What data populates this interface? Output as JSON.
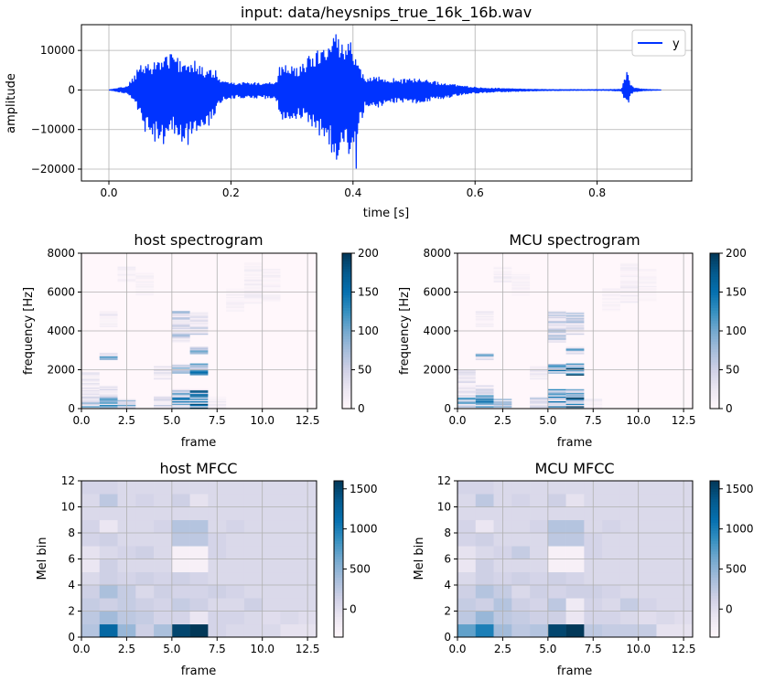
{
  "chart_data": [
    {
      "type": "line",
      "title": "input: data/heysnips_true_16k_16b.wav",
      "xlabel": "time [s]",
      "ylabel": "amplitude",
      "xlim": [
        -0.045,
        0.955
      ],
      "ylim": [
        -23000,
        16500
      ],
      "xticks": [
        0.0,
        0.2,
        0.4,
        0.6,
        0.8
      ],
      "xtick_labels": [
        "0.0",
        "0.2",
        "0.4",
        "0.6",
        "0.8"
      ],
      "yticks": [
        -20000,
        -10000,
        0,
        10000
      ],
      "ytick_labels": [
        "−20000",
        "−10000",
        "0",
        "10000"
      ],
      "grid": true,
      "legend": {
        "entries": [
          "y"
        ],
        "placement": "upper right"
      },
      "color": "#0033ff",
      "envelope": {
        "t": [
          0.0,
          0.03,
          0.045,
          0.05,
          0.06,
          0.07,
          0.08,
          0.09,
          0.1,
          0.11,
          0.12,
          0.13,
          0.14,
          0.15,
          0.16,
          0.175,
          0.18,
          0.19,
          0.2,
          0.21,
          0.22,
          0.24,
          0.26,
          0.27,
          0.275,
          0.28,
          0.29,
          0.3,
          0.31,
          0.32,
          0.33,
          0.34,
          0.35,
          0.36,
          0.37,
          0.375,
          0.38,
          0.385,
          0.39,
          0.395,
          0.4,
          0.405,
          0.41,
          0.42,
          0.43,
          0.44,
          0.45,
          0.46,
          0.47,
          0.48,
          0.49,
          0.5,
          0.52,
          0.54,
          0.56,
          0.58,
          0.6,
          0.62,
          0.64,
          0.66,
          0.68,
          0.7,
          0.72,
          0.74,
          0.76,
          0.78,
          0.8,
          0.82,
          0.84,
          0.845,
          0.85,
          0.855,
          0.86,
          0.87,
          0.88,
          0.9,
          0.905
        ],
        "upper": [
          0,
          1000,
          4500,
          6500,
          6000,
          7000,
          8000,
          8500,
          9500,
          8500,
          7000,
          8000,
          7500,
          6000,
          5000,
          5000,
          3000,
          2000,
          2000,
          2000,
          2000,
          1900,
          2000,
          2200,
          2500,
          6000,
          6500,
          6000,
          5500,
          7000,
          9000,
          10000,
          11000,
          12000,
          14500,
          15000,
          13000,
          12000,
          14000,
          15500,
          10000,
          8000,
          6000,
          3000,
          3000,
          3500,
          3000,
          3000,
          2800,
          2600,
          3000,
          3000,
          2500,
          2000,
          1500,
          1000,
          700,
          500,
          400,
          300,
          200,
          150,
          100,
          100,
          100,
          100,
          100,
          100,
          200,
          3000,
          5500,
          1500,
          600,
          300,
          150,
          50,
          0
        ],
        "lower": [
          0,
          -900,
          -3500,
          -7000,
          -11000,
          -12500,
          -13500,
          -14000,
          -12000,
          -11000,
          -13000,
          -14500,
          -13500,
          -12000,
          -10500,
          -6000,
          -4000,
          -2500,
          -2200,
          -2000,
          -2000,
          -2000,
          -2200,
          -2600,
          -3000,
          -7000,
          -8500,
          -8000,
          -7000,
          -7500,
          -9500,
          -11000,
          -12000,
          -15000,
          -16500,
          -18500,
          -15000,
          -14000,
          -15000,
          -17000,
          -13000,
          -20500,
          -10000,
          -4500,
          -4000,
          -4500,
          -4000,
          -3500,
          -3200,
          -3000,
          -3800,
          -3500,
          -3000,
          -2500,
          -1800,
          -1200,
          -800,
          -600,
          -500,
          -400,
          -300,
          -200,
          -150,
          -120,
          -100,
          -100,
          -100,
          -120,
          -300,
          -2500,
          -4500,
          -1200,
          -500,
          -300,
          -150,
          -50,
          0
        ]
      }
    },
    {
      "type": "heatmap",
      "title": "host spectrogram",
      "xlabel": "frame",
      "ylabel": "frequency [Hz]",
      "xlim": [
        0,
        13
      ],
      "ylim": [
        0,
        8000
      ],
      "xticks": [
        0,
        2.5,
        5,
        7.5,
        10,
        12.5
      ],
      "xtick_labels": [
        "0.0",
        "2.5",
        "5.0",
        "7.5",
        "10.0",
        "12.5"
      ],
      "yticks": [
        0,
        2000,
        4000,
        6000,
        8000
      ],
      "ytick_labels": [
        "0",
        "2000",
        "4000",
        "6000",
        "8000"
      ],
      "colorbar": {
        "min": 0,
        "max": 200,
        "ticks": [
          0,
          50,
          100,
          150,
          200
        ],
        "tick_labels": [
          "0",
          "50",
          "100",
          "150",
          "200"
        ]
      },
      "grid": true,
      "frames": 13,
      "bins": 128,
      "bands": [
        {
          "frame": 0,
          "f0": 0,
          "f1": 700,
          "v": 110
        },
        {
          "frame": 0,
          "f0": 700,
          "f1": 1900,
          "v": 35
        },
        {
          "frame": 1,
          "f0": 0,
          "f1": 700,
          "v": 150
        },
        {
          "frame": 1,
          "f0": 700,
          "f1": 1200,
          "v": 55
        },
        {
          "frame": 1,
          "f0": 2500,
          "f1": 2900,
          "v": 110
        },
        {
          "frame": 1,
          "f0": 4200,
          "f1": 5000,
          "v": 25
        },
        {
          "frame": 2,
          "f0": 0,
          "f1": 500,
          "v": 95
        },
        {
          "frame": 2,
          "f0": 6500,
          "f1": 7300,
          "v": 20
        },
        {
          "frame": 3,
          "f0": 5800,
          "f1": 7000,
          "v": 15
        },
        {
          "frame": 4,
          "f0": 0,
          "f1": 600,
          "v": 80
        },
        {
          "frame": 4,
          "f0": 1500,
          "f1": 2200,
          "v": 40
        },
        {
          "frame": 5,
          "f0": 0,
          "f1": 1000,
          "v": 160
        },
        {
          "frame": 5,
          "f0": 1800,
          "f1": 2300,
          "v": 110
        },
        {
          "frame": 5,
          "f0": 3400,
          "f1": 5000,
          "v": 70
        },
        {
          "frame": 6,
          "f0": 0,
          "f1": 1000,
          "v": 170
        },
        {
          "frame": 6,
          "f0": 1700,
          "f1": 2300,
          "v": 180
        },
        {
          "frame": 6,
          "f0": 2800,
          "f1": 3200,
          "v": 120
        },
        {
          "frame": 6,
          "f0": 3800,
          "f1": 5000,
          "v": 60
        },
        {
          "frame": 7,
          "f0": 0,
          "f1": 600,
          "v": 30
        },
        {
          "frame": 8,
          "f0": 5000,
          "f1": 6200,
          "v": 15
        },
        {
          "frame": 9,
          "f0": 5400,
          "f1": 7500,
          "v": 20
        },
        {
          "frame": 10,
          "f0": 5500,
          "f1": 7200,
          "v": 15
        }
      ]
    },
    {
      "type": "heatmap",
      "title": "MCU spectrogram",
      "xlabel": "frame",
      "ylabel": "frequency [Hz]",
      "xlim": [
        0,
        13
      ],
      "ylim": [
        0,
        8000
      ],
      "xticks": [
        0,
        2.5,
        5,
        7.5,
        10,
        12.5
      ],
      "xtick_labels": [
        "0.0",
        "2.5",
        "5.0",
        "7.5",
        "10.0",
        "12.5"
      ],
      "yticks": [
        0,
        2000,
        4000,
        6000,
        8000
      ],
      "ytick_labels": [
        "0",
        "2000",
        "4000",
        "6000",
        "8000"
      ],
      "colorbar": {
        "min": 0,
        "max": 200,
        "ticks": [
          0,
          50,
          100,
          150,
          200
        ],
        "tick_labels": [
          "0",
          "50",
          "100",
          "150",
          "200"
        ]
      },
      "grid": true,
      "frames": 13,
      "bins": 128,
      "bands": [
        {
          "frame": 0,
          "f0": 0,
          "f1": 700,
          "v": 120
        },
        {
          "frame": 0,
          "f0": 700,
          "f1": 2000,
          "v": 40
        },
        {
          "frame": 1,
          "f0": 0,
          "f1": 700,
          "v": 150
        },
        {
          "frame": 1,
          "f0": 700,
          "f1": 1200,
          "v": 60
        },
        {
          "frame": 1,
          "f0": 2500,
          "f1": 2900,
          "v": 110
        },
        {
          "frame": 1,
          "f0": 4200,
          "f1": 5000,
          "v": 25
        },
        {
          "frame": 2,
          "f0": 0,
          "f1": 500,
          "v": 95
        },
        {
          "frame": 2,
          "f0": 6500,
          "f1": 7300,
          "v": 20
        },
        {
          "frame": 3,
          "f0": 5800,
          "f1": 7000,
          "v": 15
        },
        {
          "frame": 4,
          "f0": 0,
          "f1": 600,
          "v": 70
        },
        {
          "frame": 4,
          "f0": 1500,
          "f1": 2200,
          "v": 40
        },
        {
          "frame": 5,
          "f0": 0,
          "f1": 1000,
          "v": 160
        },
        {
          "frame": 5,
          "f0": 1800,
          "f1": 2300,
          "v": 140
        },
        {
          "frame": 5,
          "f0": 3400,
          "f1": 5000,
          "v": 80
        },
        {
          "frame": 6,
          "f0": 0,
          "f1": 1000,
          "v": 180
        },
        {
          "frame": 6,
          "f0": 1700,
          "f1": 2300,
          "v": 190
        },
        {
          "frame": 6,
          "f0": 2800,
          "f1": 3200,
          "v": 130
        },
        {
          "frame": 6,
          "f0": 3800,
          "f1": 5000,
          "v": 70
        },
        {
          "frame": 7,
          "f0": 0,
          "f1": 500,
          "v": 25
        },
        {
          "frame": 8,
          "f0": 5000,
          "f1": 6200,
          "v": 15
        },
        {
          "frame": 9,
          "f0": 5400,
          "f1": 7500,
          "v": 20
        },
        {
          "frame": 10,
          "f0": 5500,
          "f1": 7200,
          "v": 15
        }
      ]
    },
    {
      "type": "heatmap",
      "title": "host MFCC",
      "xlabel": "frame",
      "ylabel": "Mel bin",
      "xlim": [
        0,
        13
      ],
      "ylim": [
        0,
        12
      ],
      "xticks": [
        0,
        2.5,
        5,
        7.5,
        10,
        12.5
      ],
      "xtick_labels": [
        "0.0",
        "2.5",
        "5.0",
        "7.5",
        "10.0",
        "12.5"
      ],
      "yticks": [
        0,
        2,
        4,
        6,
        8,
        10,
        12
      ],
      "ytick_labels": [
        "0",
        "2",
        "4",
        "6",
        "8",
        "10",
        "12"
      ],
      "colorbar": {
        "min": -350,
        "max": 1600,
        "ticks": [
          0,
          500,
          1000,
          1500
        ],
        "tick_labels": [
          "0",
          "500",
          "1000",
          "1500"
        ]
      },
      "grid": true,
      "values": [
        [
          300,
          1200,
          450,
          150,
          350,
          1500,
          1600,
          100,
          50,
          50,
          50,
          -50,
          -50
        ],
        [
          250,
          400,
          250,
          200,
          100,
          100,
          -100,
          100,
          100,
          50,
          0,
          50,
          0
        ],
        [
          200,
          150,
          200,
          150,
          100,
          200,
          150,
          50,
          50,
          150,
          50,
          50,
          50
        ],
        [
          150,
          350,
          200,
          50,
          150,
          100,
          100,
          150,
          100,
          50,
          50,
          50,
          50
        ],
        [
          50,
          150,
          100,
          150,
          100,
          150,
          100,
          50,
          50,
          50,
          50,
          50,
          50
        ],
        [
          -100,
          150,
          50,
          50,
          50,
          -250,
          -250,
          50,
          50,
          50,
          50,
          50,
          50
        ],
        [
          -50,
          50,
          100,
          150,
          50,
          -250,
          -250,
          100,
          50,
          50,
          50,
          50,
          50
        ],
        [
          100,
          150,
          50,
          50,
          50,
          250,
          250,
          100,
          50,
          50,
          50,
          50,
          50
        ],
        [
          100,
          -100,
          50,
          50,
          100,
          300,
          300,
          50,
          100,
          50,
          50,
          50,
          50
        ],
        [
          50,
          50,
          50,
          50,
          50,
          50,
          50,
          50,
          50,
          50,
          50,
          50,
          50
        ],
        [
          50,
          250,
          50,
          100,
          50,
          150,
          -50,
          50,
          50,
          50,
          50,
          50,
          50
        ],
        [
          100,
          100,
          50,
          50,
          50,
          50,
          50,
          50,
          50,
          50,
          50,
          50,
          50
        ]
      ]
    },
    {
      "type": "heatmap",
      "title": "MCU MFCC",
      "xlabel": "frame",
      "ylabel": "Mel bin",
      "xlim": [
        0,
        13
      ],
      "ylim": [
        0,
        12
      ],
      "xticks": [
        0,
        2.5,
        5,
        7.5,
        10,
        12.5
      ],
      "xtick_labels": [
        "0.0",
        "2.5",
        "5.0",
        "7.5",
        "10.0",
        "12.5"
      ],
      "yticks": [
        0,
        2,
        4,
        6,
        8,
        10,
        12
      ],
      "ytick_labels": [
        "0",
        "2",
        "4",
        "6",
        "8",
        "10",
        "12"
      ],
      "colorbar": {
        "min": -350,
        "max": 1600,
        "ticks": [
          0,
          500,
          1000,
          1500
        ],
        "tick_labels": [
          "0",
          "500",
          "1000",
          "1500"
        ]
      },
      "grid": true,
      "values": [
        [
          700,
          1000,
          400,
          250,
          300,
          1500,
          1600,
          250,
          200,
          200,
          200,
          -50,
          -50
        ],
        [
          250,
          450,
          250,
          200,
          150,
          150,
          -100,
          100,
          100,
          50,
          0,
          50,
          0
        ],
        [
          200,
          150,
          300,
          150,
          100,
          250,
          -150,
          100,
          50,
          200,
          100,
          50,
          50
        ],
        [
          150,
          300,
          200,
          50,
          150,
          100,
          150,
          150,
          100,
          50,
          50,
          50,
          50
        ],
        [
          50,
          150,
          100,
          150,
          100,
          150,
          100,
          50,
          50,
          50,
          50,
          50,
          50
        ],
        [
          -100,
          150,
          50,
          50,
          50,
          -250,
          -250,
          50,
          50,
          50,
          50,
          50,
          50
        ],
        [
          -50,
          50,
          100,
          200,
          50,
          -250,
          -250,
          100,
          50,
          50,
          50,
          50,
          50
        ],
        [
          100,
          150,
          50,
          50,
          50,
          250,
          250,
          100,
          50,
          50,
          50,
          50,
          50
        ],
        [
          100,
          -100,
          50,
          50,
          100,
          300,
          300,
          50,
          100,
          50,
          50,
          50,
          50
        ],
        [
          50,
          50,
          50,
          50,
          50,
          50,
          50,
          50,
          50,
          50,
          50,
          50,
          50
        ],
        [
          50,
          250,
          50,
          100,
          50,
          150,
          -50,
          50,
          50,
          50,
          50,
          50,
          50
        ],
        [
          100,
          100,
          50,
          50,
          50,
          50,
          50,
          50,
          50,
          50,
          50,
          50,
          50
        ]
      ]
    }
  ]
}
